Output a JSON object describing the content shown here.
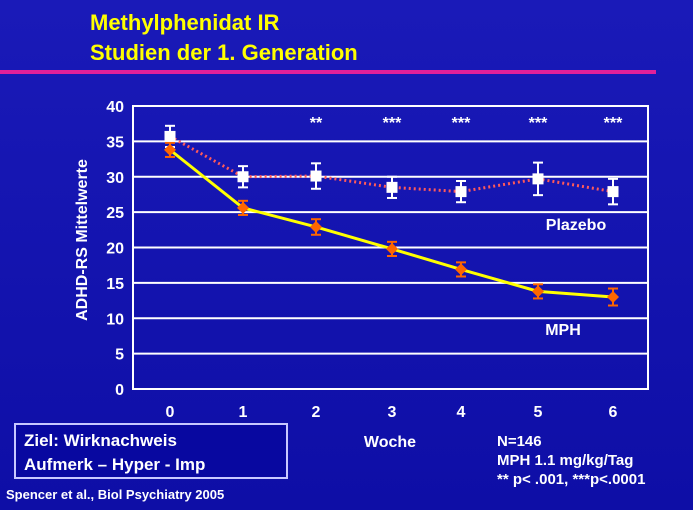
{
  "slide": {
    "title_line1": "Methylphenidat IR",
    "title_line2": "Studien der 1. Generation",
    "accent_color": "#e0209a",
    "title_color": "#ffff00",
    "background": "#1414b0"
  },
  "goal_box": {
    "line1": "Ziel: Wirknachweis",
    "line2": "Aufmerk – Hyper - Imp"
  },
  "citation": "Spencer et al., Biol Psychiatry 2005",
  "stats": {
    "n": "N=146",
    "dose": "MPH 1.1 mg/kg/Tag",
    "p_values": "** p< .001, ***p<.0001"
  },
  "chart_data": {
    "type": "line",
    "xlabel": "Woche",
    "ylabel": "ADHD-RS Mittelwerte",
    "x": [
      0,
      1,
      2,
      3,
      4,
      5,
      6
    ],
    "x_tick_labels": [
      "0",
      "1",
      "2",
      "3",
      "4",
      "5",
      "6"
    ],
    "ylim": [
      0,
      40
    ],
    "y_ticks": [
      0,
      5,
      10,
      15,
      20,
      25,
      30,
      35,
      40
    ],
    "grid": true,
    "series": [
      {
        "name": "Plazebo",
        "values": [
          35.7,
          30.0,
          30.1,
          28.5,
          27.9,
          29.7,
          27.9
        ],
        "errors": [
          1.5,
          1.5,
          1.8,
          1.5,
          1.5,
          2.3,
          1.8
        ],
        "color": "#ff5a5a",
        "marker_color": "#ffffff",
        "line_style": "dotted",
        "marker": "square"
      },
      {
        "name": "MPH",
        "values": [
          33.8,
          25.6,
          22.9,
          19.8,
          16.9,
          13.8,
          13.0
        ],
        "errors": [
          1.0,
          1.0,
          1.1,
          1.0,
          1.0,
          1.0,
          1.2
        ],
        "color": "#ffff00",
        "marker_color": "#ff6600",
        "line_style": "solid",
        "marker": "diamond"
      }
    ],
    "significance": [
      {
        "x": 2,
        "label": "**"
      },
      {
        "x": 3,
        "label": "***"
      },
      {
        "x": 4,
        "label": "***"
      },
      {
        "x": 5,
        "label": "***"
      },
      {
        "x": 6,
        "label": "***"
      }
    ]
  }
}
